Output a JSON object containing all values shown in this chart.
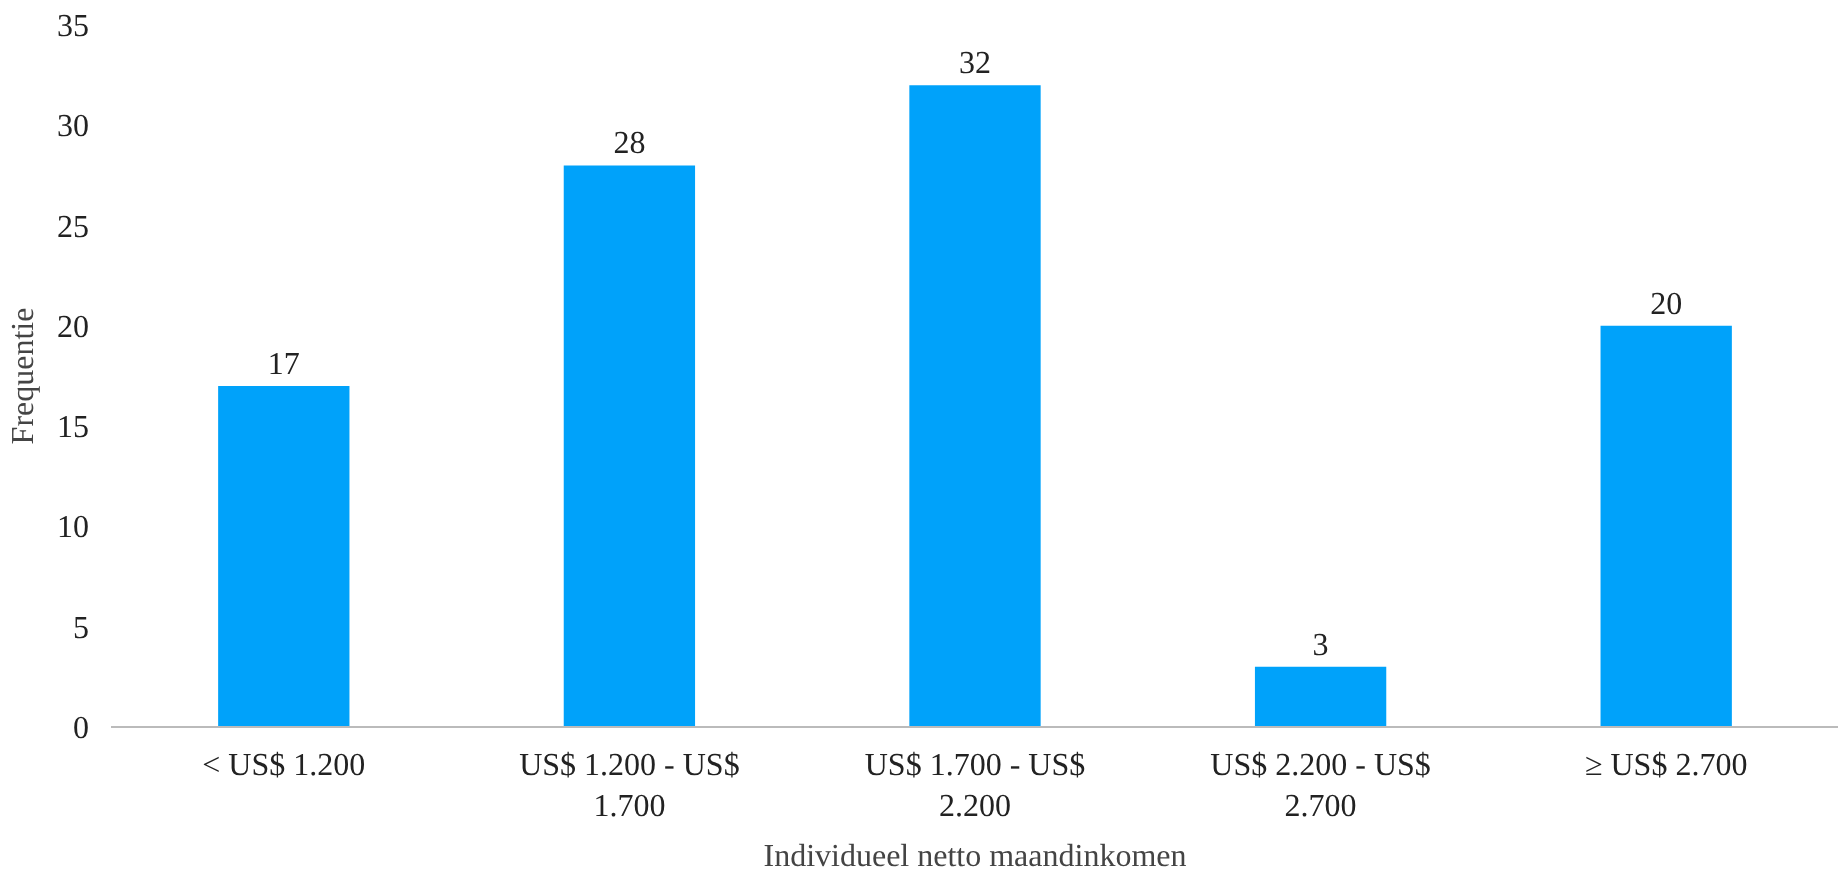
{
  "chart_data": {
    "type": "bar",
    "xlabel": "Individueel netto maandinkomen",
    "ylabel": "Frequentie",
    "categories": [
      "< US$ 1.200",
      "US$ 1.200 - US$ 1.700",
      "US$ 1.700 - US$ 2.200",
      "US$ 2.200 - US$ 2.700",
      "≥ US$ 2.700"
    ],
    "values": [
      17,
      28,
      32,
      3,
      20
    ],
    "color": "#00a2fa",
    "ylim": [
      0,
      35
    ],
    "yticks": [
      0,
      5,
      10,
      15,
      20,
      25,
      30,
      35
    ],
    "grid": false,
    "data_labels": true
  }
}
